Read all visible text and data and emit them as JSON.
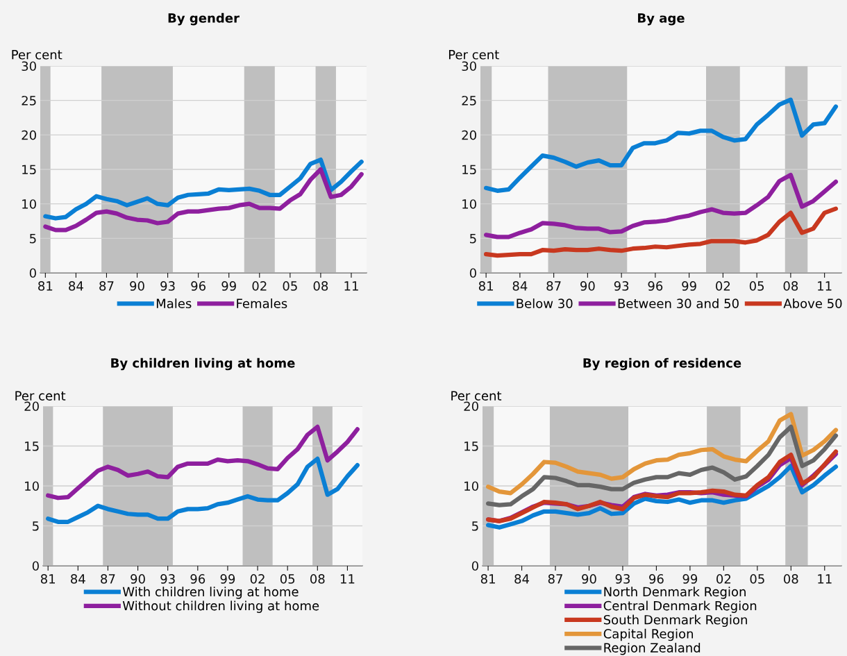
{
  "chart_data": [
    {
      "type": "line",
      "title": "By gender",
      "ylabel": "Per cent",
      "x": [
        1981,
        1982,
        1983,
        1984,
        1985,
        1986,
        1987,
        1988,
        1989,
        1990,
        1991,
        1992,
        1993,
        1994,
        1995,
        1996,
        1997,
        1998,
        1999,
        2000,
        2001,
        2002,
        2003,
        2004,
        2005,
        2006,
        2007,
        2008,
        2009,
        2010,
        2011,
        2012
      ],
      "xlim": [
        1980.5,
        2012.5
      ],
      "xticks": [
        {
          "value": 1981,
          "label": "81"
        },
        {
          "value": 1984,
          "label": "84"
        },
        {
          "value": 1987,
          "label": "87"
        },
        {
          "value": 1990,
          "label": "90"
        },
        {
          "value": 1993,
          "label": "93"
        },
        {
          "value": 1996,
          "label": "96"
        },
        {
          "value": 1999,
          "label": "99"
        },
        {
          "value": 2002,
          "label": "02"
        },
        {
          "value": 2005,
          "label": "05"
        },
        {
          "value": 2008,
          "label": "08"
        },
        {
          "value": 2011,
          "label": "11"
        }
      ],
      "ylim": [
        0,
        30
      ],
      "yticks": [
        0,
        5,
        10,
        15,
        20,
        25,
        30
      ],
      "grid": "y",
      "legend": "bottom",
      "line_style": "solid",
      "marker": "none",
      "bands": [
        {
          "axis": "x",
          "from": 1980.5,
          "to": 1981.5,
          "color": "#bfbfbf"
        },
        {
          "axis": "x",
          "from": 1986.5,
          "to": 1993.5,
          "color": "#bfbfbf"
        },
        {
          "axis": "x",
          "from": 2000.5,
          "to": 2003.5,
          "color": "#bfbfbf"
        },
        {
          "axis": "x",
          "from": 2007.5,
          "to": 2009.5,
          "color": "#bfbfbf"
        }
      ],
      "series": [
        {
          "name": "Males",
          "color": "#0a7fd4",
          "values": [
            8.2,
            7.9,
            8.1,
            9.2,
            10.0,
            11.1,
            10.7,
            10.4,
            9.8,
            10.3,
            10.8,
            10.0,
            9.8,
            10.9,
            11.3,
            11.4,
            11.5,
            12.1,
            12.0,
            12.1,
            12.2,
            11.9,
            11.3,
            11.3,
            12.5,
            13.7,
            15.8,
            16.4,
            12.0,
            13.2,
            14.7,
            16.1
          ]
        },
        {
          "name": "Females",
          "color": "#8e1f9e",
          "values": [
            6.7,
            6.2,
            6.2,
            6.8,
            7.7,
            8.7,
            8.9,
            8.6,
            8.0,
            7.7,
            7.6,
            7.2,
            7.4,
            8.6,
            8.9,
            8.9,
            9.1,
            9.3,
            9.4,
            9.8,
            10.0,
            9.4,
            9.4,
            9.3,
            10.5,
            11.4,
            13.5,
            15.0,
            11.0,
            11.3,
            12.5,
            14.3
          ]
        }
      ]
    },
    {
      "type": "line",
      "title": "By age",
      "ylabel": "Per cent",
      "x": [
        1981,
        1982,
        1983,
        1984,
        1985,
        1986,
        1987,
        1988,
        1989,
        1990,
        1991,
        1992,
        1993,
        1994,
        1995,
        1996,
        1997,
        1998,
        1999,
        2000,
        2001,
        2002,
        2003,
        2004,
        2005,
        2006,
        2007,
        2008,
        2009,
        2010,
        2011,
        2012
      ],
      "xlim": [
        1980.5,
        2012.5
      ],
      "xticks": [
        {
          "value": 1981,
          "label": "81"
        },
        {
          "value": 1984,
          "label": "84"
        },
        {
          "value": 1987,
          "label": "87"
        },
        {
          "value": 1990,
          "label": "90"
        },
        {
          "value": 1993,
          "label": "93"
        },
        {
          "value": 1996,
          "label": "96"
        },
        {
          "value": 1999,
          "label": "99"
        },
        {
          "value": 2002,
          "label": "02"
        },
        {
          "value": 2005,
          "label": "05"
        },
        {
          "value": 2008,
          "label": "08"
        },
        {
          "value": 2011,
          "label": "11"
        }
      ],
      "ylim": [
        0,
        30
      ],
      "yticks": [
        0,
        5,
        10,
        15,
        20,
        25,
        30
      ],
      "grid": "y",
      "legend": "bottom",
      "line_style": "solid",
      "marker": "none",
      "bands": [
        {
          "axis": "x",
          "from": 1980.5,
          "to": 1981.5,
          "color": "#bfbfbf"
        },
        {
          "axis": "x",
          "from": 1986.5,
          "to": 1993.5,
          "color": "#bfbfbf"
        },
        {
          "axis": "x",
          "from": 2000.5,
          "to": 2003.5,
          "color": "#bfbfbf"
        },
        {
          "axis": "x",
          "from": 2007.5,
          "to": 2009.5,
          "color": "#bfbfbf"
        }
      ],
      "series": [
        {
          "name": "Below 30",
          "color": "#0a7fd4",
          "values": [
            12.3,
            11.9,
            12.1,
            13.8,
            15.4,
            17.0,
            16.7,
            16.1,
            15.4,
            16.0,
            16.3,
            15.6,
            15.6,
            18.1,
            18.8,
            18.8,
            19.2,
            20.3,
            20.2,
            20.6,
            20.6,
            19.7,
            19.2,
            19.4,
            21.5,
            22.9,
            24.4,
            25.1,
            19.9,
            21.5,
            21.7,
            24.1
          ]
        },
        {
          "name": "Between 30 and 50",
          "color": "#8e1f9e",
          "values": [
            5.5,
            5.2,
            5.2,
            5.8,
            6.3,
            7.2,
            7.1,
            6.9,
            6.5,
            6.4,
            6.4,
            5.9,
            6.0,
            6.8,
            7.3,
            7.4,
            7.6,
            8.0,
            8.3,
            8.8,
            9.2,
            8.7,
            8.6,
            8.7,
            9.8,
            11.0,
            13.3,
            14.2,
            9.6,
            10.4,
            11.8,
            13.2
          ]
        },
        {
          "name": "Above 50",
          "color": "#c8381f",
          "values": [
            2.7,
            2.5,
            2.6,
            2.7,
            2.7,
            3.3,
            3.2,
            3.4,
            3.3,
            3.3,
            3.5,
            3.3,
            3.2,
            3.5,
            3.6,
            3.8,
            3.7,
            3.9,
            4.1,
            4.2,
            4.6,
            4.6,
            4.6,
            4.4,
            4.7,
            5.5,
            7.4,
            8.7,
            5.8,
            6.4,
            8.7,
            9.3
          ]
        }
      ]
    },
    {
      "type": "line",
      "title": "By children living at home",
      "ylabel": "Per cent",
      "x": [
        1981,
        1982,
        1983,
        1984,
        1985,
        1986,
        1987,
        1988,
        1989,
        1990,
        1991,
        1992,
        1993,
        1994,
        1995,
        1996,
        1997,
        1998,
        1999,
        2000,
        2001,
        2002,
        2003,
        2004,
        2005,
        2006,
        2007,
        2008,
        2009,
        2010,
        2011,
        2012
      ],
      "xlim": [
        1980.5,
        2012.5
      ],
      "xticks": [
        {
          "value": 1981,
          "label": "81"
        },
        {
          "value": 1984,
          "label": "84"
        },
        {
          "value": 1987,
          "label": "87"
        },
        {
          "value": 1990,
          "label": "90"
        },
        {
          "value": 1993,
          "label": "93"
        },
        {
          "value": 1996,
          "label": "96"
        },
        {
          "value": 1999,
          "label": "99"
        },
        {
          "value": 2002,
          "label": "02"
        },
        {
          "value": 2005,
          "label": "05"
        },
        {
          "value": 2008,
          "label": "08"
        },
        {
          "value": 2011,
          "label": "11"
        }
      ],
      "ylim": [
        0,
        20
      ],
      "yticks": [
        0,
        5,
        10,
        15,
        20
      ],
      "grid": "y",
      "legend": "bottom",
      "line_style": "solid",
      "marker": "none",
      "bands": [
        {
          "axis": "x",
          "from": 1980.5,
          "to": 1981.5,
          "color": "#bfbfbf"
        },
        {
          "axis": "x",
          "from": 1986.5,
          "to": 1993.5,
          "color": "#bfbfbf"
        },
        {
          "axis": "x",
          "from": 2000.5,
          "to": 2003.5,
          "color": "#bfbfbf"
        },
        {
          "axis": "x",
          "from": 2007.5,
          "to": 2009.5,
          "color": "#bfbfbf"
        }
      ],
      "series": [
        {
          "name": "With children living at home",
          "color": "#0a7fd4",
          "values": [
            5.9,
            5.5,
            5.5,
            6.1,
            6.7,
            7.5,
            7.1,
            6.8,
            6.5,
            6.4,
            6.4,
            5.9,
            5.9,
            6.8,
            7.1,
            7.1,
            7.2,
            7.7,
            7.9,
            8.3,
            8.7,
            8.3,
            8.2,
            8.2,
            9.1,
            10.2,
            12.4,
            13.4,
            8.9,
            9.6,
            11.2,
            12.6
          ]
        },
        {
          "name": "Without children living at home",
          "color": "#8e1f9e",
          "values": [
            8.8,
            8.5,
            8.6,
            9.7,
            10.8,
            11.9,
            12.4,
            12.0,
            11.3,
            11.5,
            11.8,
            11.2,
            11.1,
            12.4,
            12.8,
            12.8,
            12.8,
            13.3,
            13.1,
            13.2,
            13.1,
            12.7,
            12.2,
            12.1,
            13.5,
            14.6,
            16.4,
            17.4,
            13.2,
            14.3,
            15.5,
            17.1
          ]
        }
      ]
    },
    {
      "type": "line",
      "title": "By region of residence",
      "ylabel": "Per cent",
      "x": [
        1981,
        1982,
        1983,
        1984,
        1985,
        1986,
        1987,
        1988,
        1989,
        1990,
        1991,
        1992,
        1993,
        1994,
        1995,
        1996,
        1997,
        1998,
        1999,
        2000,
        2001,
        2002,
        2003,
        2004,
        2005,
        2006,
        2007,
        2008,
        2009,
        2010,
        2011,
        2012
      ],
      "xlim": [
        1980.5,
        2012.5
      ],
      "xticks": [
        {
          "value": 1981,
          "label": "81"
        },
        {
          "value": 1984,
          "label": "84"
        },
        {
          "value": 1987,
          "label": "87"
        },
        {
          "value": 1990,
          "label": "90"
        },
        {
          "value": 1993,
          "label": "93"
        },
        {
          "value": 1996,
          "label": "96"
        },
        {
          "value": 1999,
          "label": "99"
        },
        {
          "value": 2002,
          "label": "02"
        },
        {
          "value": 2005,
          "label": "05"
        },
        {
          "value": 2008,
          "label": "08"
        },
        {
          "value": 2011,
          "label": "11"
        }
      ],
      "ylim": [
        0,
        20
      ],
      "yticks": [
        0,
        5,
        10,
        15,
        20
      ],
      "grid": "y",
      "legend": "bottom",
      "line_style": "solid",
      "marker": "none",
      "bands": [
        {
          "axis": "x",
          "from": 1980.5,
          "to": 1981.5,
          "color": "#bfbfbf"
        },
        {
          "axis": "x",
          "from": 1986.5,
          "to": 1993.5,
          "color": "#bfbfbf"
        },
        {
          "axis": "x",
          "from": 2000.5,
          "to": 2003.5,
          "color": "#bfbfbf"
        },
        {
          "axis": "x",
          "from": 2007.5,
          "to": 2009.5,
          "color": "#bfbfbf"
        }
      ],
      "series": [
        {
          "name": "North Denmark Region",
          "color": "#0a7fd4",
          "values": [
            5.1,
            4.8,
            5.2,
            5.6,
            6.3,
            6.8,
            6.8,
            6.6,
            6.4,
            6.6,
            7.2,
            6.5,
            6.6,
            7.8,
            8.4,
            8.1,
            8.0,
            8.3,
            7.9,
            8.2,
            8.2,
            7.9,
            8.2,
            8.4,
            9.2,
            10.0,
            11.1,
            12.5,
            9.2,
            10.1,
            11.3,
            12.4
          ]
        },
        {
          "name": "Central Denmark Region",
          "color": "#8e1f9e",
          "values": [
            5.8,
            5.6,
            6.0,
            6.7,
            7.4,
            7.9,
            7.8,
            7.7,
            7.3,
            7.5,
            7.9,
            7.6,
            7.4,
            8.6,
            9.0,
            8.8,
            8.9,
            9.2,
            9.2,
            9.1,
            9.2,
            8.9,
            8.8,
            8.7,
            9.9,
            10.8,
            12.6,
            13.5,
            10.1,
            11.3,
            12.6,
            14.0
          ]
        },
        {
          "name": "South Denmark Region",
          "color": "#c8381f",
          "values": [
            5.8,
            5.6,
            5.9,
            6.6,
            7.3,
            8.0,
            7.9,
            7.7,
            7.1,
            7.5,
            8.0,
            7.4,
            7.1,
            8.5,
            8.9,
            8.7,
            8.6,
            9.1,
            9.1,
            9.2,
            9.4,
            9.3,
            8.9,
            8.8,
            10.1,
            11.1,
            13.0,
            13.9,
            10.3,
            11.1,
            12.7,
            14.3
          ]
        },
        {
          "name": "Capital Region",
          "color": "#e3963a",
          "values": [
            9.9,
            9.3,
            9.1,
            10.2,
            11.5,
            13.0,
            12.9,
            12.4,
            11.8,
            11.6,
            11.4,
            10.9,
            11.1,
            12.1,
            12.8,
            13.2,
            13.3,
            13.9,
            14.1,
            14.5,
            14.6,
            13.7,
            13.3,
            13.1,
            14.4,
            15.6,
            18.2,
            19.0,
            13.8,
            14.5,
            15.6,
            17.0
          ]
        },
        {
          "name": "Region Zealand",
          "color": "#666666",
          "values": [
            7.8,
            7.6,
            7.7,
            8.7,
            9.6,
            11.1,
            11.0,
            10.6,
            10.1,
            10.1,
            9.9,
            9.6,
            9.6,
            10.4,
            10.8,
            11.1,
            11.1,
            11.6,
            11.4,
            12.0,
            12.3,
            11.7,
            10.8,
            11.2,
            12.5,
            13.9,
            16.1,
            17.4,
            12.5,
            13.2,
            14.6,
            16.3
          ]
        }
      ]
    }
  ]
}
